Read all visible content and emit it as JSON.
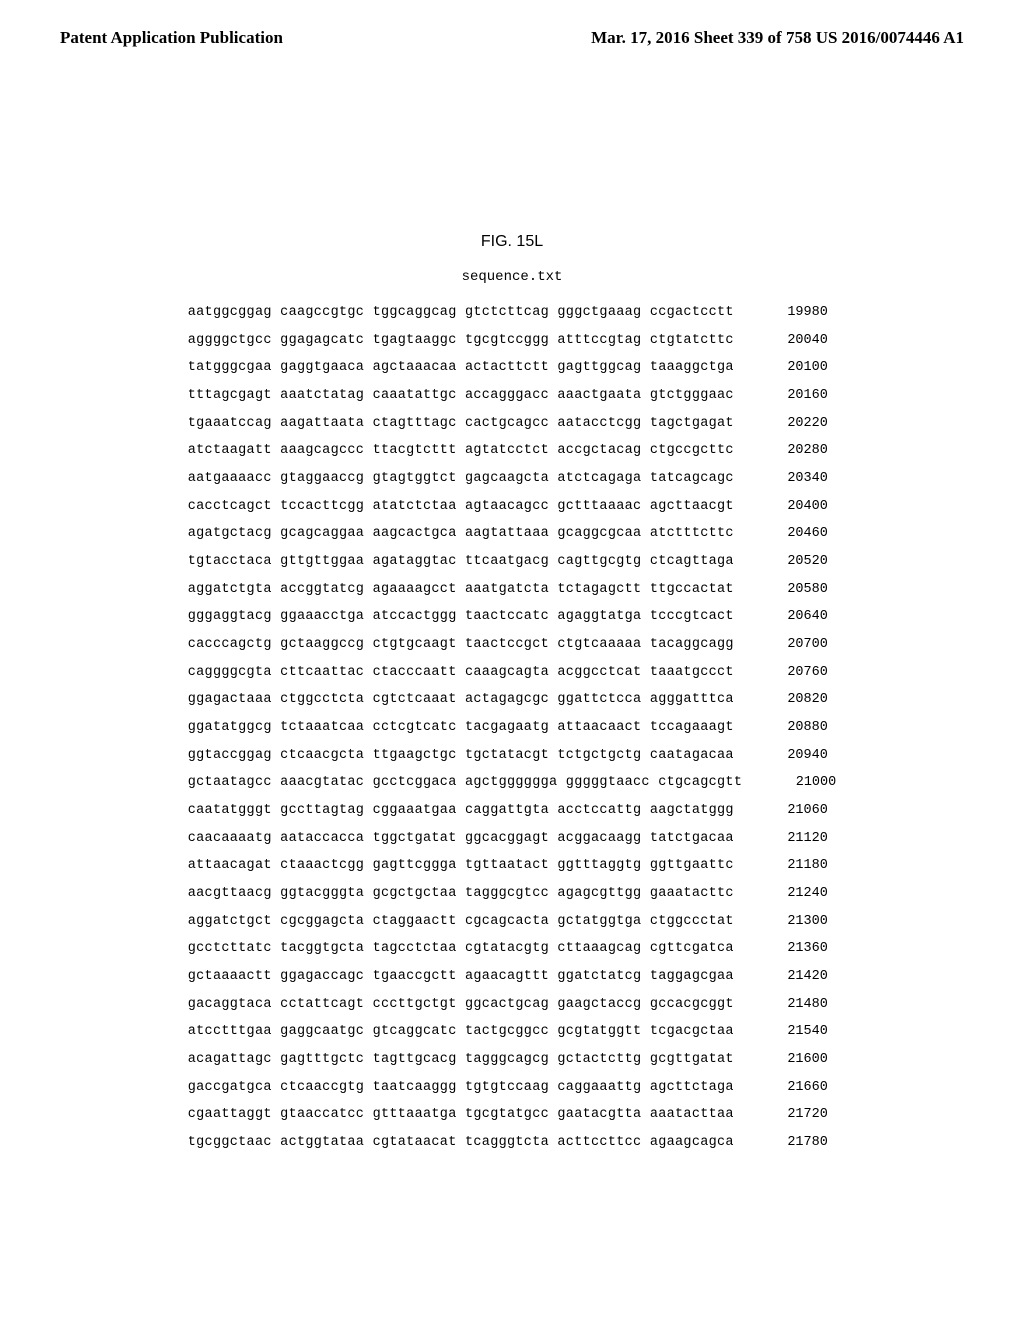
{
  "header": {
    "left": "Patent Application Publication",
    "right": "Mar. 17, 2016  Sheet 339 of 758   US 2016/0074446 A1"
  },
  "figure_title": "FIG. 15L",
  "sequence_label": "sequence.txt",
  "sequence": {
    "font_family": "Courier New",
    "font_size_pt": 10,
    "line_height": 2.05,
    "text_color": "#000000",
    "background_color": "#ffffff",
    "rows": [
      {
        "seq": "aatggcggag caagccgtgc tggcaggcag gtctcttcag gggctgaaag ccgactcctt",
        "pos": 19980
      },
      {
        "seq": "aggggctgcc ggagagcatc tgagtaaggc tgcgtccggg atttccgtag ctgtatcttc",
        "pos": 20040
      },
      {
        "seq": "tatgggcgaa gaggtgaaca agctaaacaa actacttctt gagttggcag taaaggctga",
        "pos": 20100
      },
      {
        "seq": "tttagcgagt aaatctatag caaatattgc accagggacc aaactgaata gtctgggaac",
        "pos": 20160
      },
      {
        "seq": "tgaaatccag aagattaata ctagtttagc cactgcagcc aatacctcgg tagctgagat",
        "pos": 20220
      },
      {
        "seq": "atctaagatt aaagcagccc ttacgtcttt agtatcctct accgctacag ctgccgcttc",
        "pos": 20280
      },
      {
        "seq": "aatgaaaacc gtaggaaccg gtagtggtct gagcaagcta atctcagaga tatcagcagc",
        "pos": 20340
      },
      {
        "seq": "cacctcagct tccacttcgg atatctctaa agtaacagcc gctttaaaac agcttaacgt",
        "pos": 20400
      },
      {
        "seq": "agatgctacg gcagcaggaa aagcactgca aagtattaaa gcaggcgcaa atctttcttc",
        "pos": 20460
      },
      {
        "seq": "tgtacctaca gttgttggaa agataggtac ttcaatgacg cagttgcgtg ctcagttaga",
        "pos": 20520
      },
      {
        "seq": "aggatctgta accggtatcg agaaaagcct aaatgatcta tctagagctt ttgccactat",
        "pos": 20580
      },
      {
        "seq": "gggaggtacg ggaaacctga atccactggg taactccatc agaggtatga tcccgtcact",
        "pos": 20640
      },
      {
        "seq": "cacccagctg gctaaggccg ctgtgcaagt taactccgct ctgtcaaaaa tacaggcagg",
        "pos": 20700
      },
      {
        "seq": "caggggcgta cttcaattac ctacccaatt caaagcagta acggcctcat taaatgccct",
        "pos": 20760
      },
      {
        "seq": "ggagactaaa ctggcctcta cgtctcaaat actagagcgc ggattctcca agggatttca",
        "pos": 20820
      },
      {
        "seq": "ggatatggcg tctaaatcaa cctcgtcatc tacgagaatg attaacaact tccagaaagt",
        "pos": 20880
      },
      {
        "seq": "ggtaccggag ctcaacgcta ttgaagctgc tgctatacgt tctgctgctg caatagacaa",
        "pos": 20940
      },
      {
        "seq": "gctaatagcc aaacgtatac gcctcggaca agctgggggga gggggtaacc ctgcagcgtt",
        "pos": 21000
      },
      {
        "seq": "caatatgggt gccttagtag cggaaatgaa caggattgta acctccattg aagctatggg",
        "pos": 21060
      },
      {
        "seq": "caacaaaatg aataccacca tggctgatat ggcacggagt acggacaagg tatctgacaa",
        "pos": 21120
      },
      {
        "seq": "attaacagat ctaaactcgg gagttcggga tgttaatact ggtttaggtg ggttgaattc",
        "pos": 21180
      },
      {
        "seq": "aacgttaacg ggtacgggta gcgctgctaa tagggcgtcc agagcgttgg gaaatacttc",
        "pos": 21240
      },
      {
        "seq": "aggatctgct cgcggagcta ctaggaactt cgcagcacta gctatggtga ctggccctat",
        "pos": 21300
      },
      {
        "seq": "gcctcttatc tacggtgcta tagcctctaa cgtatacgtg cttaaagcag cgttcgatca",
        "pos": 21360
      },
      {
        "seq": "gctaaaactt ggagaccagc tgaaccgctt agaacagttt ggatctatcg taggagcgaa",
        "pos": 21420
      },
      {
        "seq": "gacaggtaca cctattcagt cccttgctgt ggcactgcag gaagctaccg gccacgcggt",
        "pos": 21480
      },
      {
        "seq": "atcctttgaa gaggcaatgc gtcaggcatc tactgcggcc gcgtatggtt tcgacgctaa",
        "pos": 21540
      },
      {
        "seq": "acagattagc gagtttgctc tagttgcacg tagggcagcg gctactcttg gcgttgatat",
        "pos": 21600
      },
      {
        "seq": "gaccgatgca ctcaaccgtg taatcaaggg tgtgtccaag caggaaattg agcttctaga",
        "pos": 21660
      },
      {
        "seq": "cgaattaggt gtaaccatcc gtttaaatga tgcgtatgcc gaatacgtta aaatacttaa",
        "pos": 21720
      },
      {
        "seq": "tgcggctaac actggtataa cgtataacat tcagggtcta acttccttcc agaagcagca",
        "pos": 21780
      }
    ]
  }
}
